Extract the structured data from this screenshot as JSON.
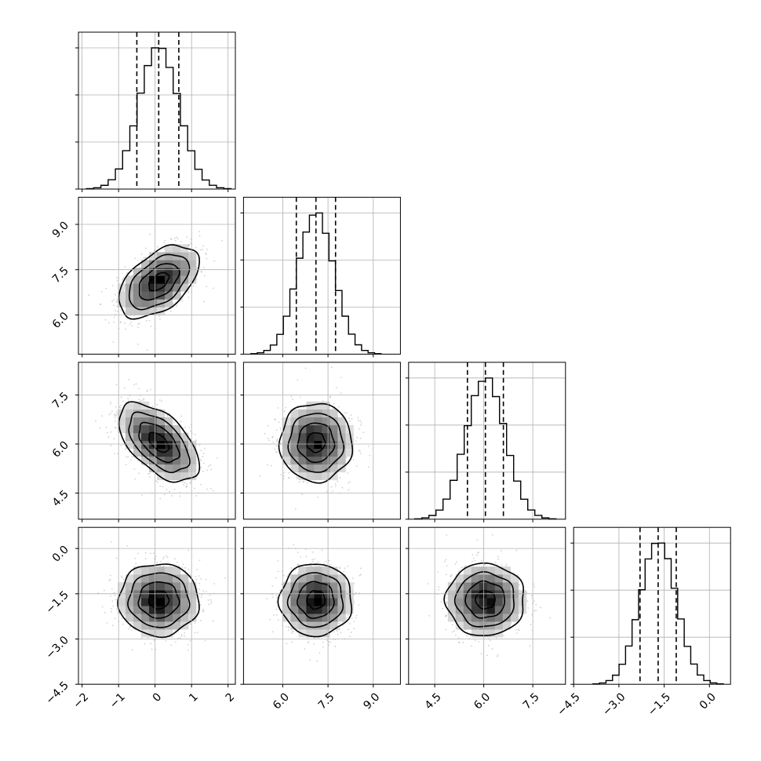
{
  "chart_data": {
    "type": "corner",
    "parameters": [
      {
        "mean": 0.1,
        "sd": 0.55,
        "q16": -0.5,
        "q50": 0.1,
        "q84": 0.65,
        "range": [
          -2.1,
          2.2
        ],
        "ticks": [
          -2,
          -1,
          0,
          1,
          2
        ],
        "tick_labels": [
          "−2",
          "−1",
          "0",
          "1",
          "2"
        ]
      },
      {
        "mean": 7.1,
        "sd": 0.6,
        "q16": 6.45,
        "q50": 7.1,
        "q84": 7.75,
        "range": [
          4.7,
          9.9
        ],
        "ticks": [
          6.0,
          7.5,
          9.0
        ],
        "tick_labels": [
          "6.0",
          "7.5",
          "9.0"
        ]
      },
      {
        "mean": 6.05,
        "sd": 0.6,
        "q16": 5.5,
        "q50": 6.05,
        "q84": 6.6,
        "range": [
          3.7,
          8.5
        ],
        "ticks": [
          4.5,
          6.0,
          7.5
        ],
        "tick_labels": [
          "4.5",
          "6.0",
          "7.5"
        ]
      },
      {
        "mean": -1.7,
        "sd": 0.6,
        "q16": -2.3,
        "q50": -1.7,
        "q84": -1.1,
        "range": [
          -4.5,
          0.7
        ],
        "ticks": [
          -4.5,
          -3.0,
          -1.5,
          0.0
        ],
        "tick_labels": [
          "−4.5",
          "−3.0",
          "−1.5",
          "0.0"
        ]
      }
    ],
    "correlations": [
      [
        0,
        1,
        0.5
      ],
      [
        0,
        2,
        -0.55
      ],
      [
        0,
        3,
        0
      ],
      [
        1,
        2,
        0
      ],
      [
        1,
        3,
        0
      ],
      [
        2,
        3,
        0
      ]
    ],
    "histogram_bins": 20,
    "quantiles": [
      0.16,
      0.5,
      0.84
    ],
    "contour_sigma_levels": [
      0.5,
      1.0,
      1.5,
      2.0
    ],
    "grid": true,
    "xlabels_panels": [
      "bottom-row"
    ],
    "ylabels_panels": [
      "left-column"
    ]
  }
}
